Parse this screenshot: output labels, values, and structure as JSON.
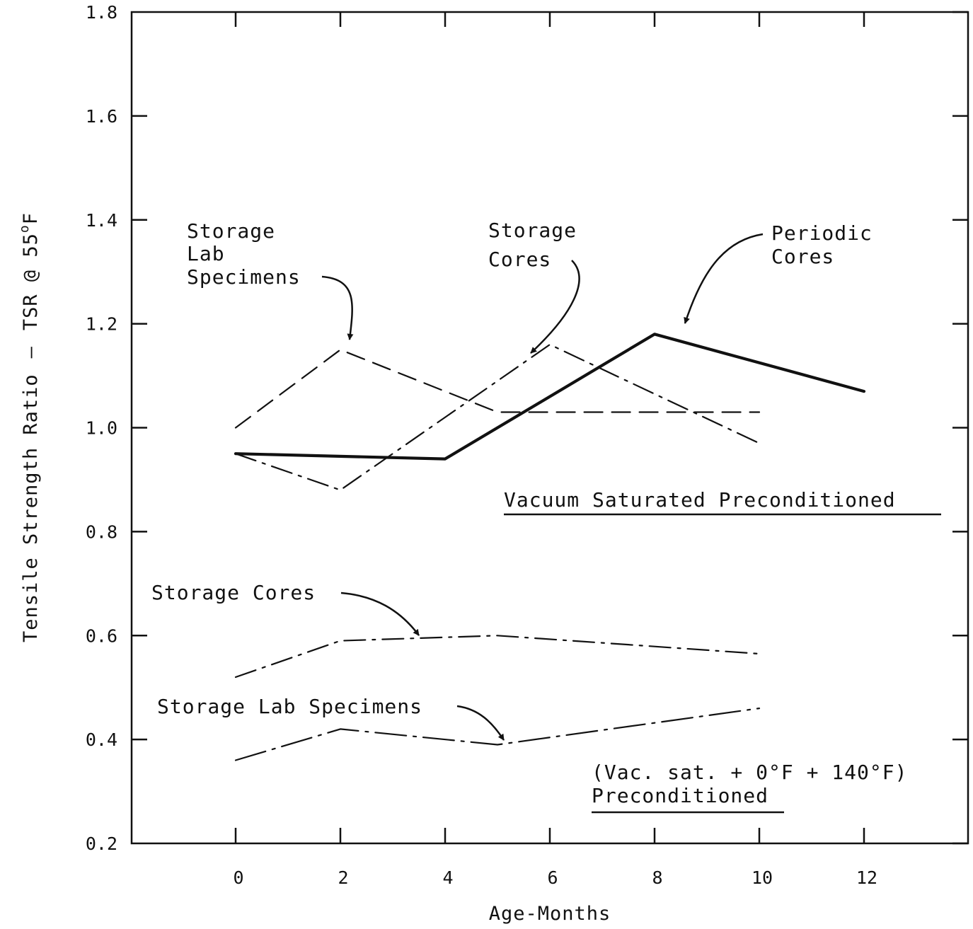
{
  "chart_data": {
    "type": "line",
    "xlabel": "Age-Months",
    "ylabel": "Tensile Strength Ratio",
    "ylabel_suffix": "TSR @ 55",
    "ylabel_degree": "o",
    "ylabel_unit": "F",
    "xlim": [
      -2,
      13.3
    ],
    "ylim": [
      0.2,
      1.8
    ],
    "xticks": [
      0,
      2,
      4,
      6,
      8,
      10,
      12
    ],
    "xtick_labels": [
      "0",
      "2",
      "4",
      "6",
      "8",
      "10",
      "12"
    ],
    "yticks": [
      0.2,
      0.4,
      0.6,
      0.8,
      1.0,
      1.2,
      1.4,
      1.6,
      1.8
    ],
    "ytick_labels": [
      "0.2",
      "0.4",
      "0.6",
      "0.8",
      "1.0",
      "1.2",
      "1.4",
      "1.6",
      "1.8"
    ],
    "grid": false,
    "series": [
      {
        "name": "Storage Lab Specimens",
        "group": "Vacuum Saturated Preconditioned",
        "style": "dashed",
        "x": [
          0,
          2,
          5,
          10
        ],
        "y": [
          1.0,
          1.15,
          1.03,
          1.03
        ]
      },
      {
        "name": "Storage Cores",
        "group": "Vacuum Saturated Preconditioned",
        "style": "dash-dot",
        "x": [
          0,
          2,
          6,
          10
        ],
        "y": [
          0.95,
          0.88,
          1.16,
          0.97
        ]
      },
      {
        "name": "Periodic Cores",
        "group": "Vacuum Saturated Preconditioned",
        "style": "solid-bold",
        "x": [
          0,
          4,
          8,
          12
        ],
        "y": [
          0.95,
          0.94,
          1.18,
          1.07
        ]
      },
      {
        "name": "Storage Cores",
        "group": "(Vac. sat. + 0°F + 140°F) Preconditioned",
        "style": "dash-dot",
        "x": [
          0,
          2,
          5,
          10
        ],
        "y": [
          0.52,
          0.59,
          0.6,
          0.565
        ]
      },
      {
        "name": "Storage Lab Specimens",
        "group": "(Vac. sat. + 0°F + 140°F) Preconditioned",
        "style": "dash-dot-long",
        "x": [
          0,
          2,
          5,
          10
        ],
        "y": [
          0.36,
          0.42,
          0.39,
          0.46
        ]
      }
    ],
    "annotations": {
      "upper_lab_specimens": [
        "Storage",
        "Lab",
        "Specimens"
      ],
      "upper_cores": [
        "Storage",
        "Cores"
      ],
      "periodic_cores": [
        "Periodic",
        "Cores"
      ],
      "vacuum_title": "Vacuum Saturated Preconditioned",
      "lower_cores": "Storage Cores",
      "lower_lab_specimens": "Storage Lab Specimens",
      "vac_sat_line": "(Vac. sat. + 0°F + 140°F)",
      "vac_sat_title": "Preconditioned"
    }
  }
}
